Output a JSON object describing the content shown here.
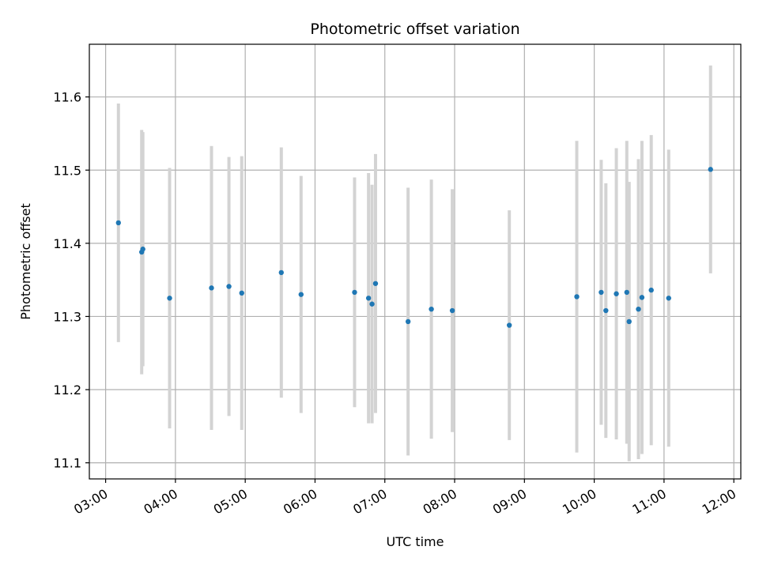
{
  "chart_data": {
    "type": "scatter",
    "title": "Photometric offset variation",
    "xlabel": "UTC time",
    "ylabel": "Photometric offset",
    "grid": true,
    "point_color": "#1f77b4",
    "errorbar_color": "#d3d3d3",
    "xlim": [
      "02:46",
      "12:06"
    ],
    "ylim": [
      11.078,
      11.672
    ],
    "x_ticks": [
      "03:00",
      "04:00",
      "05:00",
      "06:00",
      "07:00",
      "08:00",
      "09:00",
      "10:00",
      "11:00",
      "12:00"
    ],
    "y_ticks": [
      "11.1",
      "11.2",
      "11.3",
      "11.4",
      "11.5",
      "11.6"
    ],
    "points": [
      {
        "x": "03:11",
        "y": 11.428,
        "err": 0.163
      },
      {
        "x": "03:31",
        "y": 11.388,
        "err": 0.167
      },
      {
        "x": "03:32",
        "y": 11.392,
        "err": 0.16
      },
      {
        "x": "03:55",
        "y": 11.325,
        "err": 0.178
      },
      {
        "x": "04:31",
        "y": 11.339,
        "err": 0.194
      },
      {
        "x": "04:46",
        "y": 11.341,
        "err": 0.177
      },
      {
        "x": "04:57",
        "y": 11.332,
        "err": 0.187
      },
      {
        "x": "05:31",
        "y": 11.36,
        "err": 0.171
      },
      {
        "x": "05:48",
        "y": 11.33,
        "err": 0.162
      },
      {
        "x": "06:34",
        "y": 11.333,
        "err": 0.157
      },
      {
        "x": "06:46",
        "y": 11.325,
        "err": 0.171
      },
      {
        "x": "06:49",
        "y": 11.317,
        "err": 0.163
      },
      {
        "x": "06:52",
        "y": 11.345,
        "err": 0.177
      },
      {
        "x": "07:20",
        "y": 11.293,
        "err": 0.183
      },
      {
        "x": "07:40",
        "y": 11.31,
        "err": 0.177
      },
      {
        "x": "07:58",
        "y": 11.308,
        "err": 0.166
      },
      {
        "x": "08:47",
        "y": 11.288,
        "err": 0.157
      },
      {
        "x": "09:45",
        "y": 11.327,
        "err": 0.213
      },
      {
        "x": "10:06",
        "y": 11.333,
        "err": 0.181
      },
      {
        "x": "10:10",
        "y": 11.308,
        "err": 0.174
      },
      {
        "x": "10:19",
        "y": 11.331,
        "err": 0.199
      },
      {
        "x": "10:28",
        "y": 11.333,
        "err": 0.207
      },
      {
        "x": "10:30",
        "y": 11.293,
        "err": 0.191
      },
      {
        "x": "10:38",
        "y": 11.31,
        "err": 0.205
      },
      {
        "x": "10:41",
        "y": 11.326,
        "err": 0.214
      },
      {
        "x": "10:49",
        "y": 11.336,
        "err": 0.212
      },
      {
        "x": "11:04",
        "y": 11.325,
        "err": 0.203
      },
      {
        "x": "11:40",
        "y": 11.501,
        "err": 0.142
      }
    ]
  }
}
